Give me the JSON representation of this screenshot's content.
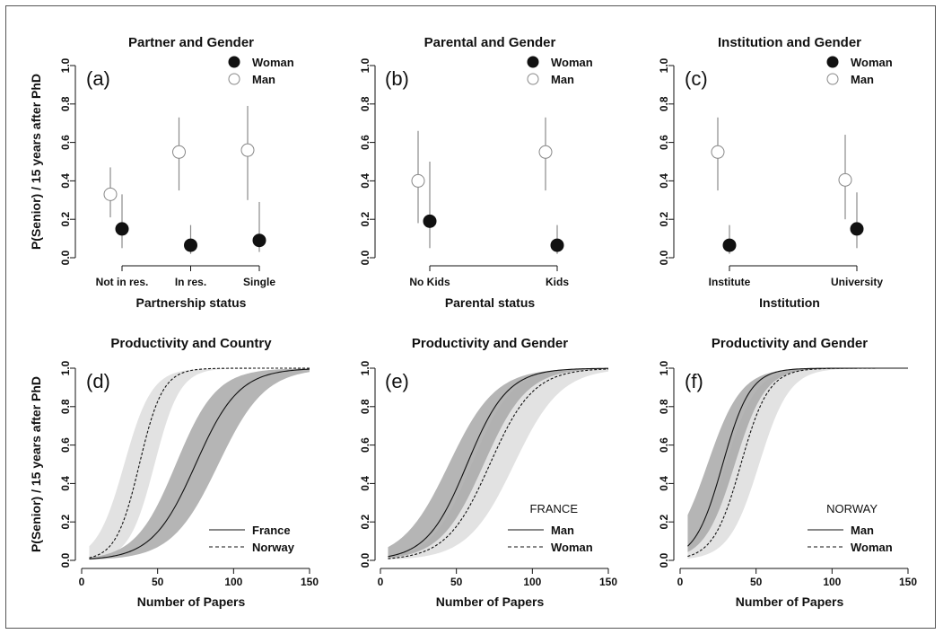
{
  "y_axis_label": "P(Senior) / 15 years after PhD",
  "chart_data": [
    {
      "type": "scatter",
      "panel_label": "(a)",
      "title": "Partner and Gender",
      "xlabel": "Partnership status",
      "ylabel": "P(Senior) / 15 years after PhD",
      "categories": [
        "Not in res.",
        "In res.",
        "Single"
      ],
      "ylim": [
        0,
        1
      ],
      "yticks": [
        "0.0",
        "0.2",
        "0.4",
        "0.6",
        "0.8",
        "1.0"
      ],
      "legend_position": "top-right",
      "series": [
        {
          "name": "Woman",
          "marker": "filled-circle",
          "values": [
            0.15,
            0.065,
            0.09
          ],
          "lower": [
            0.05,
            0.02,
            0.03
          ],
          "upper": [
            0.33,
            0.17,
            0.29
          ]
        },
        {
          "name": "Man",
          "marker": "open-circle",
          "values": [
            0.33,
            0.55,
            0.56
          ],
          "lower": [
            0.21,
            0.35,
            0.3
          ],
          "upper": [
            0.47,
            0.73,
            0.79
          ]
        }
      ]
    },
    {
      "type": "scatter",
      "panel_label": "(b)",
      "title": "Parental and Gender",
      "xlabel": "Parental status",
      "categories": [
        "No Kids",
        "Kids"
      ],
      "ylim": [
        0,
        1
      ],
      "yticks": [
        "0.0",
        "0.2",
        "0.4",
        "0.6",
        "0.8",
        "1.0"
      ],
      "legend_position": "top-right",
      "series": [
        {
          "name": "Woman",
          "marker": "filled-circle",
          "values": [
            0.19,
            0.065
          ],
          "lower": [
            0.05,
            0.02
          ],
          "upper": [
            0.5,
            0.17
          ]
        },
        {
          "name": "Man",
          "marker": "open-circle",
          "values": [
            0.4,
            0.55
          ],
          "lower": [
            0.18,
            0.35
          ],
          "upper": [
            0.66,
            0.73
          ]
        }
      ]
    },
    {
      "type": "scatter",
      "panel_label": "(c)",
      "title": "Institution and Gender",
      "xlabel": "Institution",
      "categories": [
        "Institute",
        "University"
      ],
      "ylim": [
        0,
        1
      ],
      "yticks": [
        "0.0",
        "0.2",
        "0.4",
        "0.6",
        "0.8",
        "1.0"
      ],
      "legend_position": "top-right",
      "series": [
        {
          "name": "Woman",
          "marker": "filled-circle",
          "values": [
            0.065,
            0.15
          ],
          "lower": [
            0.02,
            0.05
          ],
          "upper": [
            0.17,
            0.34
          ]
        },
        {
          "name": "Man",
          "marker": "open-circle",
          "values": [
            0.55,
            0.405
          ],
          "lower": [
            0.35,
            0.2
          ],
          "upper": [
            0.73,
            0.64
          ]
        }
      ]
    },
    {
      "type": "line",
      "panel_label": "(d)",
      "title": "Productivity and Country",
      "xlabel": "Number of Papers",
      "ylabel": "P(Senior) / 15 years after PhD",
      "xlim": [
        0,
        150
      ],
      "ylim": [
        0,
        1
      ],
      "xticks": [
        "0",
        "50",
        "100",
        "150"
      ],
      "yticks": [
        "0.0",
        "0.2",
        "0.4",
        "0.6",
        "0.8",
        "1.0"
      ],
      "legend_position": "bottom-right",
      "series": [
        {
          "name": "France",
          "style": "solid",
          "band": "dark",
          "midpoint": 75,
          "slope": 0.07,
          "band_lower_midpoint": 90,
          "band_lower_slope": 0.065,
          "band_upper_midpoint": 62,
          "band_upper_slope": 0.075
        },
        {
          "name": "Norway",
          "style": "dashed",
          "band": "light",
          "midpoint": 38,
          "slope": 0.13,
          "band_lower_midpoint": 48,
          "band_lower_slope": 0.12,
          "band_upper_midpoint": 28,
          "band_upper_slope": 0.11
        }
      ]
    },
    {
      "type": "line",
      "panel_label": "(e)",
      "title": "Productivity and Gender",
      "annotation": "FRANCE",
      "xlabel": "Number of Papers",
      "xlim": [
        0,
        150
      ],
      "ylim": [
        0,
        1
      ],
      "xticks": [
        "0",
        "50",
        "100",
        "150"
      ],
      "yticks": [
        "0.0",
        "0.2",
        "0.4",
        "0.6",
        "0.8",
        "1.0"
      ],
      "legend_position": "bottom-right",
      "series": [
        {
          "name": "Man",
          "style": "solid",
          "band": "dark",
          "midpoint": 57,
          "slope": 0.075,
          "band_lower_midpoint": 68,
          "band_lower_slope": 0.07,
          "band_upper_midpoint": 45,
          "band_upper_slope": 0.065
        },
        {
          "name": "Woman",
          "style": "dashed",
          "band": "light",
          "midpoint": 72,
          "slope": 0.07,
          "band_lower_midpoint": 88,
          "band_lower_slope": 0.065,
          "band_upper_midpoint": 60,
          "band_upper_slope": 0.075
        }
      ]
    },
    {
      "type": "line",
      "panel_label": "(f)",
      "title": "Productivity and Gender",
      "annotation": "NORWAY",
      "xlabel": "Number of Papers",
      "xlim": [
        0,
        150
      ],
      "ylim": [
        0,
        1
      ],
      "xticks": [
        "0",
        "50",
        "100",
        "150"
      ],
      "yticks": [
        "0.0",
        "0.2",
        "0.4",
        "0.6",
        "0.8",
        "1.0"
      ],
      "legend_position": "bottom-right",
      "series": [
        {
          "name": "Man",
          "style": "solid",
          "band": "dark",
          "midpoint": 28,
          "slope": 0.11,
          "band_lower_midpoint": 36,
          "band_lower_slope": 0.1,
          "band_upper_midpoint": 18,
          "band_upper_slope": 0.09
        },
        {
          "name": "Woman",
          "style": "dashed",
          "band": "light",
          "midpoint": 40,
          "slope": 0.11,
          "band_lower_midpoint": 52,
          "band_lower_slope": 0.1,
          "band_upper_midpoint": 30,
          "band_upper_slope": 0.1
        }
      ]
    }
  ],
  "colors": {
    "band_dark": "#a8a8a8",
    "band_light": "#e2e2e2",
    "whisker": "#8a8a8a",
    "ink": "#111111"
  }
}
